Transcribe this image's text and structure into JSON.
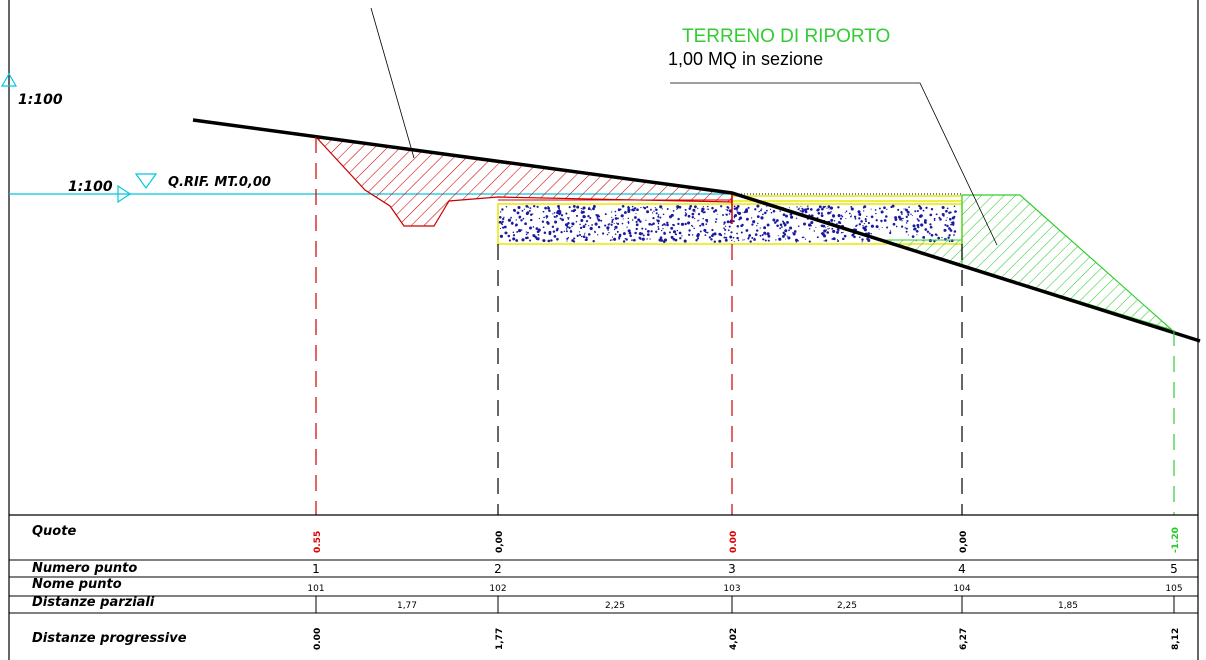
{
  "labels": {
    "scale_top": "1:100",
    "scale_ref": "1:100",
    "ref_level": "Q.RIF.  MT.0,00",
    "fill_title": "TERRENO DI RIPORTO",
    "fill_area": "1,00 MQ in sezione"
  },
  "table": {
    "row_labels": [
      "Quote",
      "Numero punto",
      "Nome punto",
      "Distanze parziali",
      "Distanze progressive"
    ],
    "points": [
      {
        "quota": "0.55",
        "numero": "1",
        "nome": "101",
        "progressiva": "0.00",
        "color": "#e00000"
      },
      {
        "quota": "0,00",
        "numero": "2",
        "nome": "102",
        "progressiva": "1,77",
        "color": "#000000"
      },
      {
        "quota": "0.00",
        "numero": "3",
        "nome": "103",
        "progressiva": "4,02",
        "color": "#e00000"
      },
      {
        "quota": "0,00",
        "numero": "4",
        "nome": "104",
        "progressiva": "6,27",
        "color": "#000000"
      },
      {
        "quota": "-1.20",
        "numero": "5",
        "nome": "105",
        "progressiva": "8,12",
        "color": "#22cc22"
      }
    ],
    "parziali": [
      "1,77",
      "2,25",
      "2,25",
      "1,85"
    ]
  },
  "colors": {
    "cut": "#cc0000",
    "fill": "#33cc33",
    "reference": "#00c8e0",
    "pavement_yellow": "#e8e800",
    "aggregate": "#1a1aa0",
    "terrain": "#000000"
  }
}
